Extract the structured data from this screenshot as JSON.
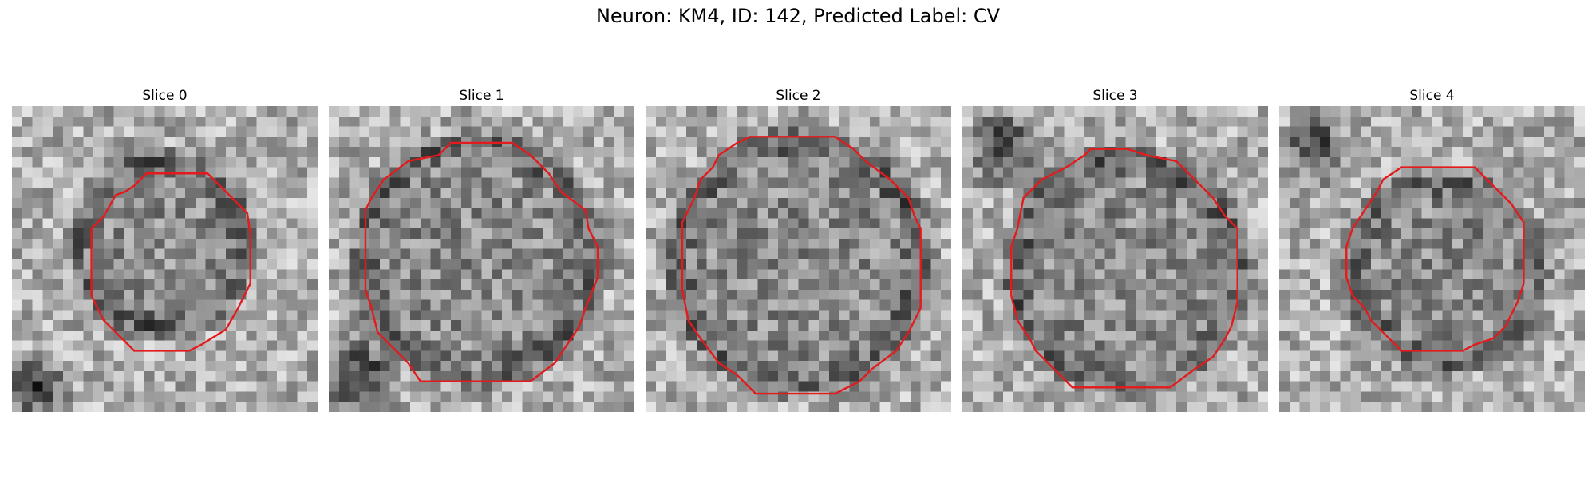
{
  "title": "Neuron: KM4, ID: 142, Predicted Label: CV",
  "colors": {
    "contour": "#e41a1c",
    "background": "#ffffff"
  },
  "panels": [
    {
      "label": "Slice 0",
      "ring_radius": 0.27,
      "ring_center": [
        0.49,
        0.45
      ],
      "dark_blobs": [
        [
          0.08,
          0.92,
          0.12
        ]
      ],
      "contour": [
        [
          0.44,
          0.22
        ],
        [
          0.64,
          0.22
        ],
        [
          0.72,
          0.3
        ],
        [
          0.77,
          0.35
        ],
        [
          0.78,
          0.42
        ],
        [
          0.78,
          0.58
        ],
        [
          0.74,
          0.66
        ],
        [
          0.7,
          0.73
        ],
        [
          0.62,
          0.78
        ],
        [
          0.58,
          0.8
        ],
        [
          0.4,
          0.8
        ],
        [
          0.34,
          0.74
        ],
        [
          0.3,
          0.7
        ],
        [
          0.26,
          0.62
        ],
        [
          0.26,
          0.4
        ],
        [
          0.3,
          0.36
        ],
        [
          0.34,
          0.29
        ],
        [
          0.37,
          0.28
        ],
        [
          0.4,
          0.26
        ]
      ]
    },
    {
      "label": "Slice 1",
      "ring_radius": 0.38,
      "ring_center": [
        0.49,
        0.5
      ],
      "dark_blobs": [
        [
          0.1,
          0.88,
          0.16
        ]
      ],
      "contour": [
        [
          0.36,
          0.16
        ],
        [
          0.4,
          0.12
        ],
        [
          0.6,
          0.12
        ],
        [
          0.66,
          0.16
        ],
        [
          0.72,
          0.22
        ],
        [
          0.76,
          0.28
        ],
        [
          0.84,
          0.34
        ],
        [
          0.85,
          0.4
        ],
        [
          0.88,
          0.46
        ],
        [
          0.88,
          0.56
        ],
        [
          0.84,
          0.66
        ],
        [
          0.82,
          0.72
        ],
        [
          0.78,
          0.78
        ],
        [
          0.74,
          0.84
        ],
        [
          0.66,
          0.9
        ],
        [
          0.3,
          0.9
        ],
        [
          0.26,
          0.84
        ],
        [
          0.22,
          0.8
        ],
        [
          0.16,
          0.74
        ],
        [
          0.14,
          0.66
        ],
        [
          0.12,
          0.6
        ],
        [
          0.12,
          0.34
        ],
        [
          0.14,
          0.3
        ],
        [
          0.18,
          0.24
        ],
        [
          0.26,
          0.18
        ]
      ]
    },
    {
      "label": "Slice 2",
      "ring_radius": 0.4,
      "ring_center": [
        0.5,
        0.51
      ],
      "dark_blobs": [],
      "contour": [
        [
          0.3,
          0.12
        ],
        [
          0.34,
          0.1
        ],
        [
          0.62,
          0.1
        ],
        [
          0.68,
          0.14
        ],
        [
          0.72,
          0.18
        ],
        [
          0.8,
          0.24
        ],
        [
          0.86,
          0.3
        ],
        [
          0.88,
          0.36
        ],
        [
          0.9,
          0.4
        ],
        [
          0.9,
          0.66
        ],
        [
          0.86,
          0.74
        ],
        [
          0.82,
          0.8
        ],
        [
          0.74,
          0.86
        ],
        [
          0.7,
          0.9
        ],
        [
          0.62,
          0.94
        ],
        [
          0.36,
          0.94
        ],
        [
          0.3,
          0.88
        ],
        [
          0.24,
          0.84
        ],
        [
          0.18,
          0.76
        ],
        [
          0.14,
          0.7
        ],
        [
          0.12,
          0.6
        ],
        [
          0.12,
          0.38
        ],
        [
          0.16,
          0.3
        ],
        [
          0.18,
          0.24
        ],
        [
          0.22,
          0.2
        ],
        [
          0.24,
          0.16
        ]
      ]
    },
    {
      "label": "Slice 3",
      "ring_radius": 0.37,
      "ring_center": [
        0.54,
        0.54
      ],
      "dark_blobs": [
        [
          0.14,
          0.14,
          0.15
        ]
      ],
      "contour": [
        [
          0.4,
          0.16
        ],
        [
          0.42,
          0.14
        ],
        [
          0.54,
          0.14
        ],
        [
          0.6,
          0.16
        ],
        [
          0.7,
          0.18
        ],
        [
          0.76,
          0.24
        ],
        [
          0.82,
          0.3
        ],
        [
          0.86,
          0.36
        ],
        [
          0.9,
          0.4
        ],
        [
          0.9,
          0.64
        ],
        [
          0.88,
          0.72
        ],
        [
          0.86,
          0.76
        ],
        [
          0.82,
          0.82
        ],
        [
          0.76,
          0.86
        ],
        [
          0.68,
          0.92
        ],
        [
          0.36,
          0.92
        ],
        [
          0.3,
          0.86
        ],
        [
          0.24,
          0.8
        ],
        [
          0.22,
          0.76
        ],
        [
          0.18,
          0.7
        ],
        [
          0.16,
          0.62
        ],
        [
          0.16,
          0.46
        ],
        [
          0.18,
          0.4
        ],
        [
          0.2,
          0.3
        ],
        [
          0.26,
          0.24
        ],
        [
          0.34,
          0.2
        ]
      ]
    },
    {
      "label": "Slice 4",
      "ring_radius": 0.3,
      "ring_center": [
        0.54,
        0.54
      ],
      "dark_blobs": [
        [
          0.12,
          0.14,
          0.13
        ]
      ],
      "contour": [
        [
          0.34,
          0.24
        ],
        [
          0.4,
          0.2
        ],
        [
          0.64,
          0.2
        ],
        [
          0.7,
          0.26
        ],
        [
          0.76,
          0.32
        ],
        [
          0.8,
          0.38
        ],
        [
          0.8,
          0.58
        ],
        [
          0.78,
          0.64
        ],
        [
          0.76,
          0.68
        ],
        [
          0.74,
          0.72
        ],
        [
          0.7,
          0.76
        ],
        [
          0.64,
          0.78
        ],
        [
          0.6,
          0.8
        ],
        [
          0.4,
          0.8
        ],
        [
          0.34,
          0.74
        ],
        [
          0.3,
          0.7
        ],
        [
          0.28,
          0.66
        ],
        [
          0.24,
          0.62
        ],
        [
          0.22,
          0.56
        ],
        [
          0.22,
          0.46
        ],
        [
          0.24,
          0.4
        ],
        [
          0.28,
          0.34
        ],
        [
          0.32,
          0.28
        ]
      ]
    }
  ]
}
